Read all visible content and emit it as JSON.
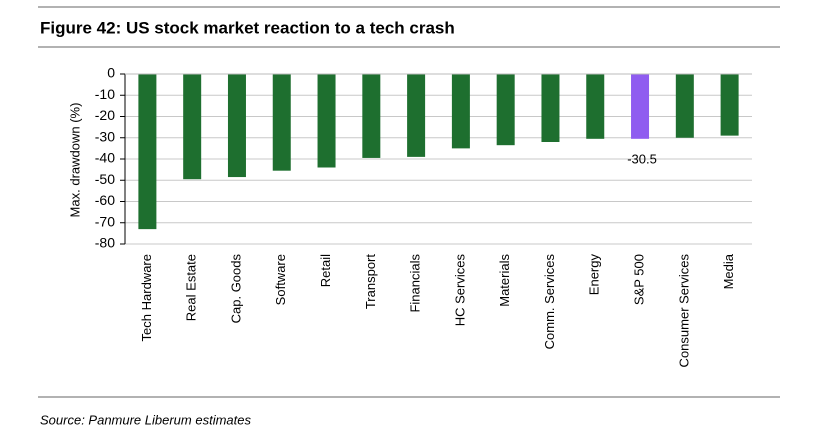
{
  "chart_data": {
    "type": "bar",
    "title": "Figure 42: US stock market reaction to a tech crash",
    "y_label": "Max. drawdown (%)",
    "source": "Source: Panmure Liberum estimates",
    "categories": [
      "Tech Hardware",
      "Real Estate",
      "Cap. Goods",
      "Software",
      "Retail",
      "Transport",
      "Financials",
      "HC Services",
      "Materials",
      "Comm. Services",
      "Energy",
      "S&P 500",
      "Consumer Services",
      "Media"
    ],
    "values": [
      -73,
      -49.5,
      -48.5,
      -45.5,
      -44,
      -39.5,
      -39,
      -35,
      -33.5,
      -32,
      -30.5,
      -30.5,
      -30,
      -29
    ],
    "colors": [
      "#1e6f2f",
      "#1e6f2f",
      "#1e6f2f",
      "#1e6f2f",
      "#1e6f2f",
      "#1e6f2f",
      "#1e6f2f",
      "#1e6f2f",
      "#1e6f2f",
      "#1e6f2f",
      "#1e6f2f",
      "#8f5cf0",
      "#1e6f2f",
      "#1e6f2f"
    ],
    "ylim": [
      -80,
      0
    ],
    "yticks": [
      0,
      -10,
      -20,
      -30,
      -40,
      -50,
      -60,
      -70,
      -80
    ],
    "grid": true
  }
}
